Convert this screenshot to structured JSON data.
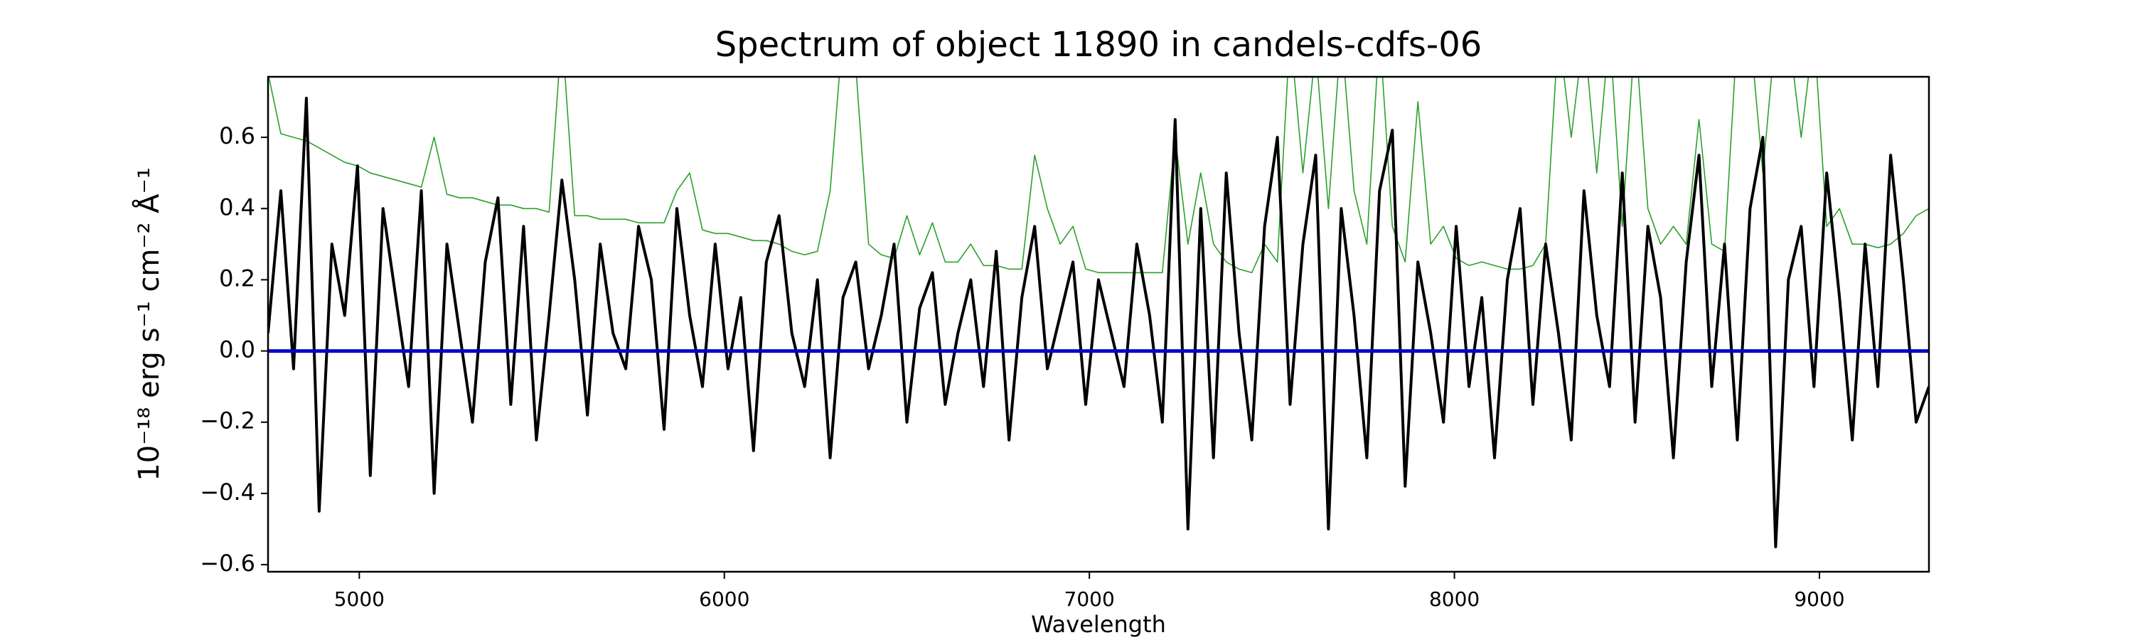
{
  "chart_data": {
    "type": "line",
    "title": "Spectrum of object 11890 in candels-cdfs-06",
    "xlabel": "Wavelength",
    "ylabel": "10⁻¹⁸ erg s⁻¹ cm⁻² Å⁻¹",
    "xlim": [
      4750,
      9300
    ],
    "ylim": [
      -0.62,
      0.77
    ],
    "xticks": [
      5000,
      6000,
      7000,
      8000,
      9000
    ],
    "yticks": [
      {
        "value": -0.6,
        "label": "−0.6"
      },
      {
        "value": -0.4,
        "label": "−0.4"
      },
      {
        "value": -0.2,
        "label": "−0.2"
      },
      {
        "value": 0,
        "label": "0.0"
      },
      0.2,
      0.4,
      0.6
    ],
    "grid": false,
    "x": [
      4750,
      4785,
      4820,
      4855,
      4890,
      4925,
      4960,
      4995,
      5030,
      5065,
      5100,
      5135,
      5170,
      5205,
      5240,
      5275,
      5310,
      5345,
      5380,
      5415,
      5450,
      5485,
      5520,
      5555,
      5590,
      5625,
      5660,
      5695,
      5730,
      5765,
      5800,
      5835,
      5870,
      5905,
      5940,
      5975,
      6010,
      6045,
      6080,
      6115,
      6150,
      6185,
      6220,
      6255,
      6290,
      6325,
      6360,
      6395,
      6430,
      6465,
      6500,
      6535,
      6570,
      6605,
      6640,
      6675,
      6710,
      6745,
      6780,
      6815,
      6850,
      6885,
      6920,
      6955,
      6990,
      7025,
      7060,
      7095,
      7130,
      7165,
      7200,
      7235,
      7270,
      7305,
      7340,
      7375,
      7410,
      7445,
      7480,
      7515,
      7550,
      7585,
      7620,
      7655,
      7690,
      7725,
      7760,
      7795,
      7830,
      7865,
      7900,
      7935,
      7970,
      8005,
      8040,
      8075,
      8110,
      8145,
      8180,
      8215,
      8250,
      8285,
      8320,
      8355,
      8390,
      8425,
      8460,
      8495,
      8530,
      8565,
      8600,
      8635,
      8670,
      8705,
      8740,
      8775,
      8810,
      8845,
      8880,
      8915,
      8950,
      8985,
      9020,
      9055,
      9090,
      9125,
      9160,
      9195,
      9230,
      9265,
      9300
    ],
    "series": [
      {
        "color": "#2ca02c",
        "width": 1.6,
        "values": [
          0.78,
          0.61,
          0.6,
          0.59,
          0.57,
          0.55,
          0.53,
          0.52,
          0.5,
          0.49,
          0.48,
          0.47,
          0.46,
          0.6,
          0.44,
          0.43,
          0.43,
          0.42,
          0.41,
          0.41,
          0.4,
          0.4,
          0.39,
          0.9,
          0.38,
          0.38,
          0.37,
          0.37,
          0.37,
          0.36,
          0.36,
          0.36,
          0.45,
          0.5,
          0.34,
          0.33,
          0.33,
          0.32,
          0.31,
          0.31,
          0.3,
          0.28,
          0.27,
          0.28,
          0.45,
          0.9,
          0.8,
          0.3,
          0.27,
          0.26,
          0.38,
          0.27,
          0.36,
          0.25,
          0.25,
          0.3,
          0.24,
          0.24,
          0.23,
          0.23,
          0.55,
          0.4,
          0.3,
          0.35,
          0.23,
          0.22,
          0.22,
          0.22,
          0.22,
          0.22,
          0.22,
          0.6,
          0.3,
          0.5,
          0.3,
          0.25,
          0.23,
          0.22,
          0.3,
          0.25,
          0.9,
          0.5,
          0.85,
          0.4,
          0.9,
          0.45,
          0.3,
          0.9,
          0.35,
          0.25,
          0.7,
          0.3,
          0.35,
          0.26,
          0.24,
          0.25,
          0.24,
          0.23,
          0.23,
          0.24,
          0.3,
          0.9,
          0.6,
          0.9,
          0.5,
          0.9,
          0.35,
          0.9,
          0.4,
          0.3,
          0.35,
          0.3,
          0.65,
          0.3,
          0.28,
          0.9,
          0.9,
          0.5,
          0.9,
          0.9,
          0.6,
          0.9,
          0.35,
          0.4,
          0.3,
          0.3,
          0.29,
          0.3,
          0.33,
          0.38,
          0.4
        ]
      },
      {
        "color": "#000000",
        "width": 4,
        "values": [
          0.05,
          0.45,
          -0.05,
          0.71,
          -0.45,
          0.3,
          0.1,
          0.52,
          -0.35,
          0.4,
          0.15,
          -0.1,
          0.45,
          -0.4,
          0.3,
          0.05,
          -0.2,
          0.25,
          0.43,
          -0.15,
          0.35,
          -0.25,
          0.1,
          0.48,
          0.2,
          -0.18,
          0.3,
          0.05,
          -0.05,
          0.35,
          0.2,
          -0.22,
          0.4,
          0.1,
          -0.1,
          0.3,
          -0.05,
          0.15,
          -0.28,
          0.25,
          0.38,
          0.05,
          -0.1,
          0.2,
          -0.3,
          0.15,
          0.25,
          -0.05,
          0.1,
          0.3,
          -0.2,
          0.12,
          0.22,
          -0.15,
          0.05,
          0.2,
          -0.1,
          0.28,
          -0.25,
          0.15,
          0.35,
          -0.05,
          0.1,
          0.25,
          -0.15,
          0.2,
          0.05,
          -0.1,
          0.3,
          0.1,
          -0.2,
          0.65,
          -0.5,
          0.4,
          -0.3,
          0.5,
          0.05,
          -0.25,
          0.35,
          0.6,
          -0.15,
          0.3,
          0.55,
          -0.5,
          0.4,
          0.1,
          -0.3,
          0.45,
          0.62,
          -0.38,
          0.25,
          0.05,
          -0.2,
          0.35,
          -0.1,
          0.15,
          -0.3,
          0.2,
          0.4,
          -0.15,
          0.3,
          0.05,
          -0.25,
          0.45,
          0.1,
          -0.1,
          0.5,
          -0.2,
          0.35,
          0.15,
          -0.3,
          0.25,
          0.55,
          -0.1,
          0.3,
          -0.25,
          0.4,
          0.6,
          -0.55,
          0.2,
          0.35,
          -0.1,
          0.5,
          0.15,
          -0.25,
          0.3,
          -0.1,
          0.55,
          0.2,
          -0.2,
          -0.1
        ]
      },
      {
        "color": "#0000cc",
        "width": 5,
        "x": [
          4750,
          9300
        ],
        "values": [
          0,
          0
        ]
      }
    ]
  }
}
